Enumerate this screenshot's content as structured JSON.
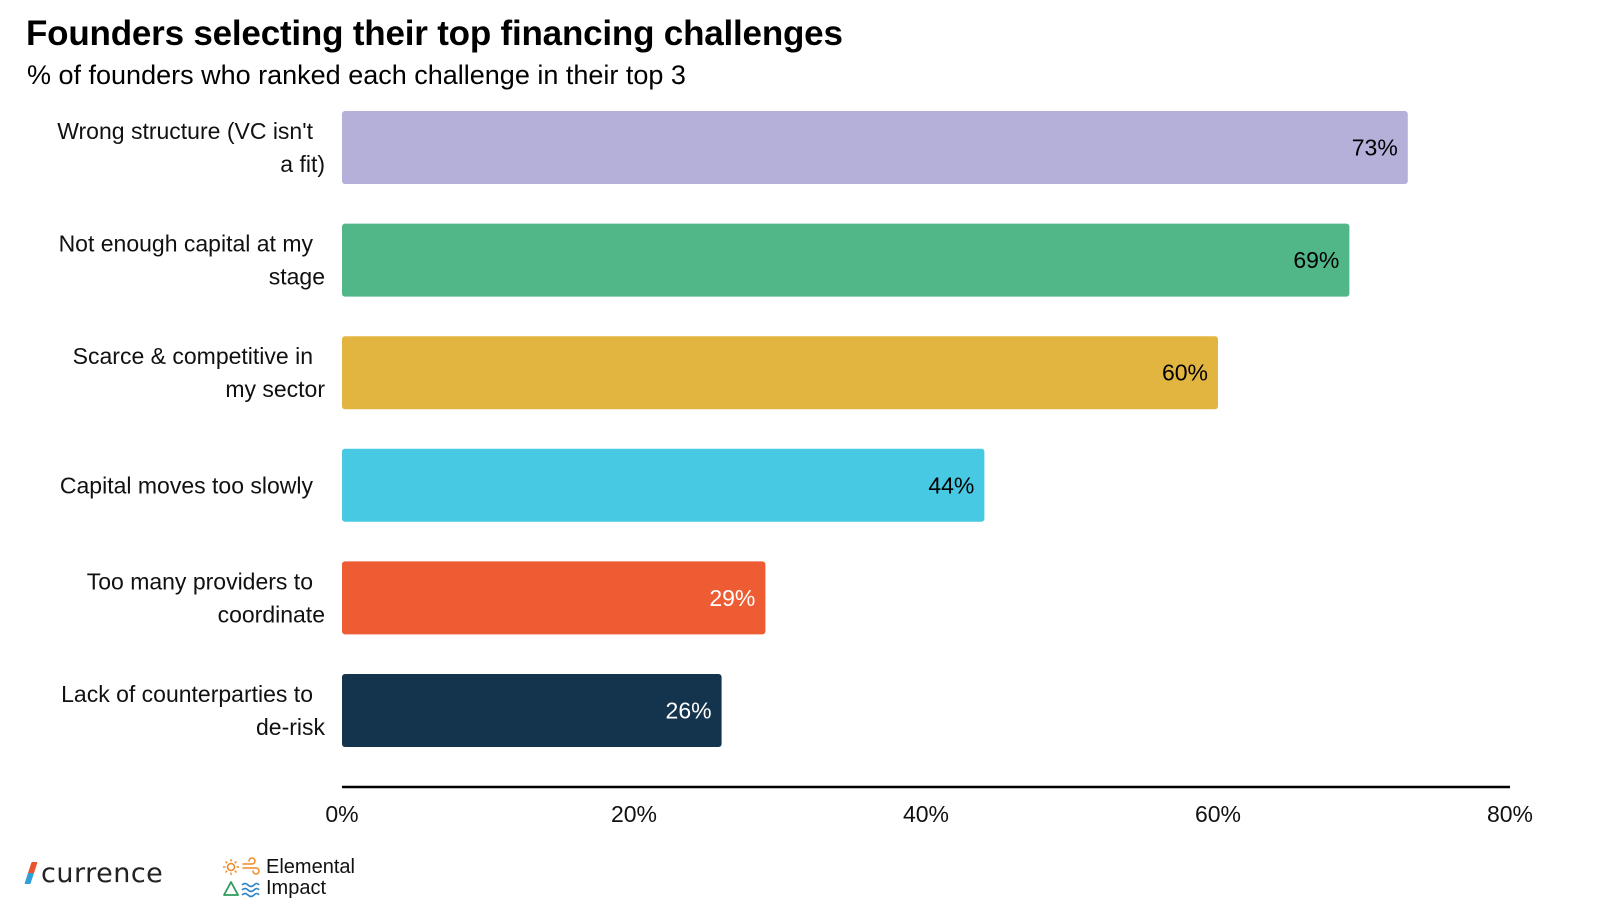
{
  "chart_data": {
    "type": "bar",
    "orientation": "horizontal",
    "title": "Founders selecting their top financing challenges",
    "subtitle": "% of founders who ranked each challenge in their top 3",
    "categories": [
      [
        "Wrong structure (VC isn't",
        "a fit)"
      ],
      [
        "Not enough capital at my",
        "stage"
      ],
      [
        "Scarce & competitive in",
        "my sector"
      ],
      [
        "Capital moves too slowly"
      ],
      [
        "Too many providers to",
        "coordinate"
      ],
      [
        "Lack of counterparties to",
        "de-risk"
      ]
    ],
    "values": [
      73,
      69,
      60,
      44,
      29,
      26
    ],
    "value_labels": [
      "73%",
      "69%",
      "60%",
      "44%",
      "29%",
      "26%"
    ],
    "colors": [
      "#b4b0d9",
      "#52b788",
      "#e2b540",
      "#48c9e3",
      "#ee5c33",
      "#14344d"
    ],
    "label_colors": [
      "#000000",
      "#000000",
      "#000000",
      "#000000",
      "#ffffff",
      "#ffffff"
    ],
    "xlim": [
      0,
      80
    ],
    "xticks": [
      0,
      20,
      40,
      60,
      80
    ],
    "xtick_labels": [
      "0%",
      "20%",
      "40%",
      "60%",
      "80%"
    ],
    "grid": false,
    "legend": "none"
  },
  "logos": {
    "currence": "currence",
    "elemental_line1": "Elemental",
    "elemental_line2": "Impact"
  }
}
